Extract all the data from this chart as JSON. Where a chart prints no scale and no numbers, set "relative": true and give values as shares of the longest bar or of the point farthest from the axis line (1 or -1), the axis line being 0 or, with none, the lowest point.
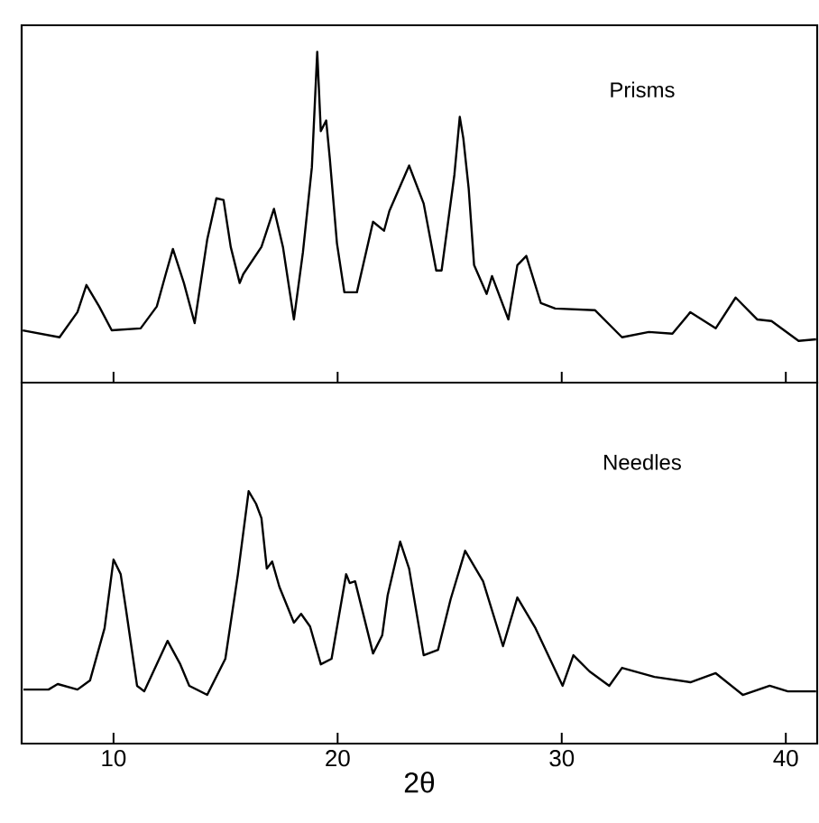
{
  "chart_data": [
    {
      "type": "line",
      "relative": true,
      "xlim": [
        5.9,
        41.4
      ],
      "xticks": [
        10,
        20,
        30,
        40
      ],
      "tick_labels": false,
      "annotations": [
        "Prisms"
      ],
      "x": [
        5.95,
        7.59,
        8.39,
        8.79,
        9.36,
        9.92,
        11.21,
        11.93,
        12.33,
        12.65,
        13.14,
        13.62,
        14.18,
        14.59,
        14.91,
        15.23,
        15.63,
        15.79,
        16.6,
        17.16,
        17.56,
        18.05,
        18.45,
        18.85,
        19.09,
        19.25,
        19.49,
        19.65,
        19.97,
        20.3,
        20.86,
        21.58,
        22.07,
        22.31,
        23.19,
        23.84,
        24.4,
        24.64,
        25.21,
        25.45,
        25.61,
        25.85,
        26.09,
        26.65,
        26.89,
        27.62,
        28.02,
        28.42,
        29.07,
        29.71,
        31.48,
        32.69,
        33.89,
        34.94,
        35.74,
        36.87,
        37.76,
        38.72,
        39.36,
        40.57,
        41.35
      ],
      "series": [
        {
          "color": "#000000",
          "values": [
            0.158,
            0.137,
            0.213,
            0.295,
            0.23,
            0.158,
            0.164,
            0.23,
            0.328,
            0.404,
            0.301,
            0.18,
            0.432,
            0.557,
            0.552,
            0.41,
            0.301,
            0.328,
            0.41,
            0.525,
            0.41,
            0.191,
            0.393,
            0.65,
            1.0,
            0.76,
            0.792,
            0.678,
            0.421,
            0.273,
            0.273,
            0.486,
            0.459,
            0.519,
            0.656,
            0.541,
            0.339,
            0.339,
            0.628,
            0.803,
            0.738,
            0.585,
            0.355,
            0.268,
            0.322,
            0.191,
            0.355,
            0.383,
            0.24,
            0.224,
            0.219,
            0.137,
            0.153,
            0.148,
            0.213,
            0.164,
            0.257,
            0.191,
            0.186,
            0.126,
            0.131
          ]
        }
      ]
    },
    {
      "type": "line",
      "relative": true,
      "xlim": [
        5.9,
        41.4
      ],
      "xticks": [
        10,
        20,
        30,
        40
      ],
      "tick_labels": "x",
      "xlabel": "2θ",
      "annotations": [
        "Needles"
      ],
      "x": [
        5.98,
        7.1,
        7.51,
        8.39,
        8.95,
        9.6,
        10.0,
        10.32,
        10.56,
        11.05,
        11.37,
        12.41,
        12.98,
        13.38,
        14.18,
        14.99,
        15.55,
        16.03,
        16.36,
        16.6,
        16.84,
        17.08,
        17.4,
        18.05,
        18.37,
        18.77,
        19.25,
        19.73,
        20.38,
        20.54,
        20.78,
        21.18,
        21.58,
        21.99,
        22.23,
        22.79,
        23.19,
        23.84,
        24.48,
        25.04,
        25.69,
        26.49,
        27.38,
        28.02,
        28.83,
        30.04,
        30.52,
        31.24,
        32.12,
        32.69,
        34.14,
        35.74,
        36.87,
        38.08,
        39.28,
        40.09,
        41.35
      ],
      "series": [
        {
          "color": "#000000",
          "values": [
            0.214,
            0.214,
            0.236,
            0.214,
            0.25,
            0.457,
            0.729,
            0.671,
            0.529,
            0.229,
            0.207,
            0.407,
            0.314,
            0.229,
            0.193,
            0.336,
            0.671,
            1.0,
            0.95,
            0.893,
            0.693,
            0.721,
            0.621,
            0.479,
            0.514,
            0.464,
            0.314,
            0.336,
            0.671,
            0.636,
            0.643,
            0.5,
            0.357,
            0.429,
            0.586,
            0.8,
            0.693,
            0.35,
            0.371,
            0.571,
            0.764,
            0.643,
            0.386,
            0.579,
            0.457,
            0.229,
            0.35,
            0.286,
            0.229,
            0.3,
            0.264,
            0.243,
            0.279,
            0.193,
            0.229,
            0.207,
            0.207
          ]
        }
      ]
    }
  ]
}
